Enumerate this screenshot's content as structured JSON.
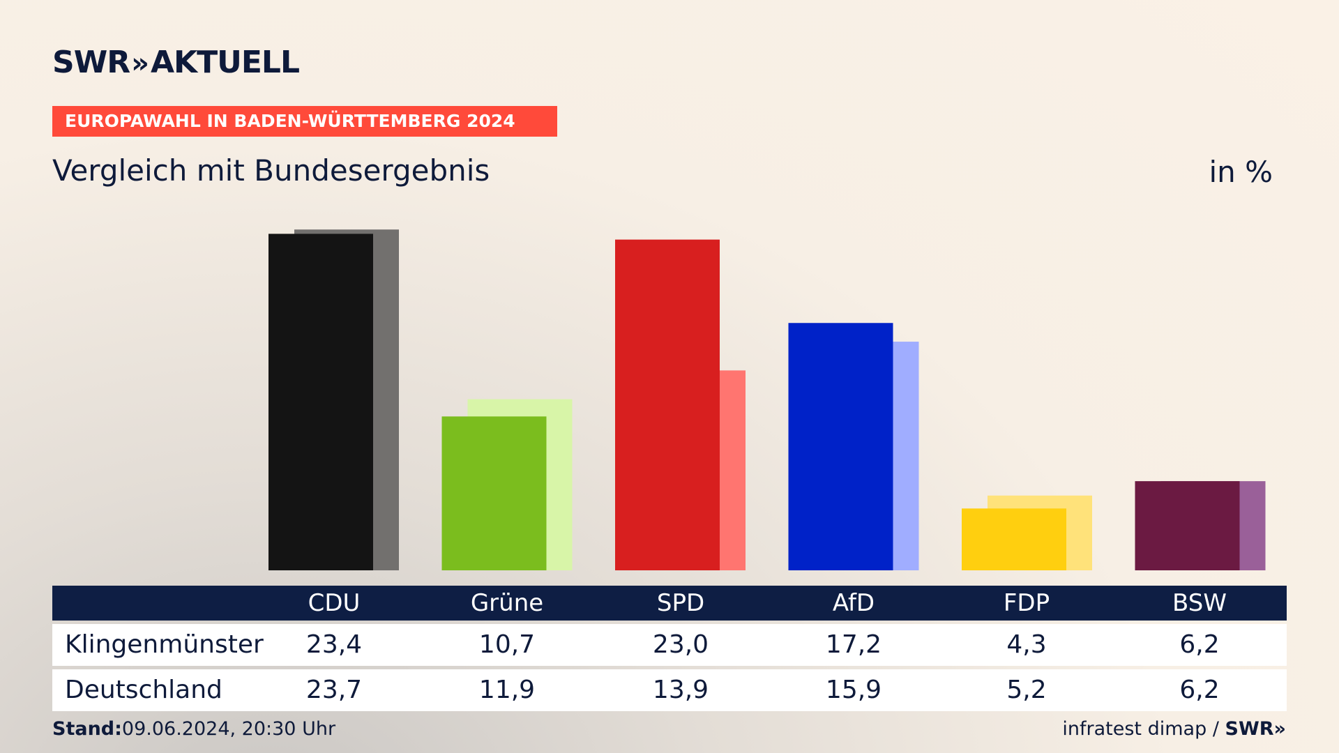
{
  "brand": {
    "name": "SWR",
    "chevrons": "»",
    "product": "AKTUELL"
  },
  "ribbon": "EUROPAWAHL IN BADEN-WÜRTTEMBERG 2024",
  "subtitle": "Vergleich mit Bundesergebnis",
  "unit": "in %",
  "table": {
    "columns": [
      "CDU",
      "Grüne",
      "SPD",
      "AfD",
      "FDP",
      "BSW"
    ],
    "rows": [
      {
        "label": "Klingenmünster",
        "values": [
          "23,4",
          "10,7",
          "23,0",
          "17,2",
          "4,3",
          "6,2"
        ]
      },
      {
        "label": "Deutschland",
        "values": [
          "23,7",
          "11,9",
          "13,9",
          "15,9",
          "5,2",
          "6,2"
        ]
      }
    ]
  },
  "footer": {
    "stand_label": "Stand:",
    "stand_value": "09.06.2024, 20:30 Uhr",
    "source": "infratest dimap",
    "separator": "/",
    "source_brand": "SWR»"
  },
  "chart_data": {
    "type": "bar",
    "title": "Vergleich mit Bundesergebnis",
    "categories": [
      "CDU",
      "Grüne",
      "SPD",
      "AfD",
      "FDP",
      "BSW"
    ],
    "series": [
      {
        "name": "Klingenmünster",
        "values": [
          23.4,
          10.7,
          23.0,
          17.2,
          4.3,
          6.2
        ]
      },
      {
        "name": "Deutschland",
        "values": [
          23.7,
          11.9,
          13.9,
          15.9,
          5.2,
          6.2
        ]
      }
    ],
    "colors": {
      "primary": [
        "#141414",
        "#7bbd1e",
        "#d81f1f",
        "#0022c8",
        "#ffcf0f",
        "#6b1a42"
      ],
      "secondary": [
        "#72706e",
        "#d8f5a8",
        "#ff7570",
        "#a0adff",
        "#ffe27a",
        "#9a6099"
      ]
    },
    "ylim": [
      0,
      24
    ],
    "grid": false,
    "legend": "none"
  }
}
